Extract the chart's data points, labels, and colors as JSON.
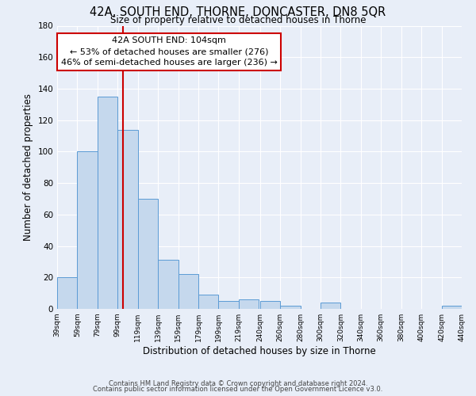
{
  "title": "42A, SOUTH END, THORNE, DONCASTER, DN8 5QR",
  "subtitle": "Size of property relative to detached houses in Thorne",
  "xlabel": "Distribution of detached houses by size in Thorne",
  "ylabel": "Number of detached properties",
  "footer_line1": "Contains HM Land Registry data © Crown copyright and database right 2024.",
  "footer_line2": "Contains public sector information licensed under the Open Government Licence v3.0.",
  "bar_edges": [
    39,
    59,
    79,
    99,
    119,
    139,
    159,
    179,
    199,
    219,
    240,
    260,
    280,
    300,
    320,
    340,
    360,
    380,
    400,
    420,
    440
  ],
  "bar_heights": [
    20,
    100,
    135,
    114,
    70,
    31,
    22,
    9,
    5,
    6,
    5,
    2,
    0,
    4,
    0,
    0,
    0,
    0,
    0,
    2
  ],
  "bar_color": "#c5d8ed",
  "bar_edgecolor": "#5b9bd5",
  "property_line_x": 104,
  "property_line_color": "#cc0000",
  "annotation_title": "42A SOUTH END: 104sqm",
  "annotation_line1": "← 53% of detached houses are smaller (276)",
  "annotation_line2": "46% of semi-detached houses are larger (236) →",
  "annotation_box_color": "#ffffff",
  "annotation_box_edgecolor": "#cc0000",
  "ylim": [
    0,
    180
  ],
  "yticks": [
    0,
    20,
    40,
    60,
    80,
    100,
    120,
    140,
    160,
    180
  ],
  "x_tick_labels": [
    "39sqm",
    "59sqm",
    "79sqm",
    "99sqm",
    "119sqm",
    "139sqm",
    "159sqm",
    "179sqm",
    "199sqm",
    "219sqm",
    "240sqm",
    "260sqm",
    "280sqm",
    "300sqm",
    "320sqm",
    "340sqm",
    "360sqm",
    "380sqm",
    "400sqm",
    "420sqm",
    "440sqm"
  ],
  "background_color": "#e8eef8"
}
